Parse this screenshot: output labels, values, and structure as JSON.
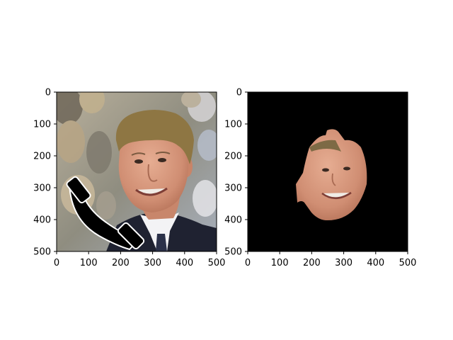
{
  "panels": [
    {
      "name": "left-image",
      "content": "photo of a smiling man in a dark suit against a blurred crowd, with a black telephone-handset shape occluding the lower-left",
      "x_ticks": [
        "0",
        "100",
        "200",
        "300",
        "400",
        "500"
      ],
      "y_ticks": [
        "0",
        "100",
        "200",
        "300",
        "400",
        "500"
      ]
    },
    {
      "name": "right-image",
      "content": "segmented face region on a black background",
      "x_ticks": [
        "0",
        "100",
        "200",
        "300",
        "400",
        "500"
      ],
      "y_ticks": [
        "0",
        "100",
        "200",
        "300",
        "400",
        "500"
      ]
    }
  ],
  "colors": {
    "background": "#ffffff",
    "crowd_bg": "#9c9a8f",
    "suit": "#1f2231",
    "shirt": "#f3f3f5",
    "skin": "#d89a80",
    "hair": "#8e7643",
    "mask_bg": "#000000"
  }
}
